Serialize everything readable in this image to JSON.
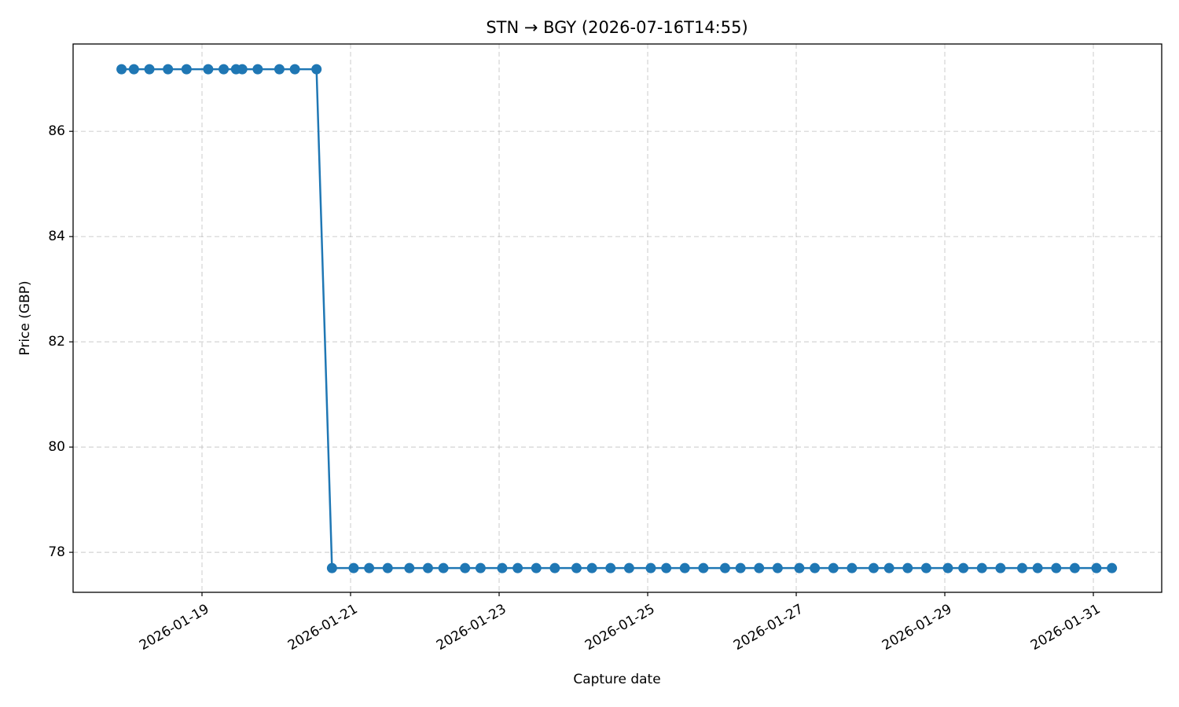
{
  "chart_data": {
    "type": "line",
    "title": "STN → BGY (2026-07-16T14:55)",
    "x_label": "Capture date",
    "y_label": "Price (GBP)",
    "x": [
      "2026-01-17T22:00",
      "2026-01-18T02:00",
      "2026-01-18T07:00",
      "2026-01-18T13:00",
      "2026-01-18T19:00",
      "2026-01-19T02:00",
      "2026-01-19T07:00",
      "2026-01-19T11:00",
      "2026-01-19T13:00",
      "2026-01-19T18:00",
      "2026-01-20T01:00",
      "2026-01-20T06:00",
      "2026-01-20T13:00",
      "2026-01-20T18:00",
      "2026-01-21T01:00",
      "2026-01-21T06:00",
      "2026-01-21T12:00",
      "2026-01-21T19:00",
      "2026-01-22T01:00",
      "2026-01-22T06:00",
      "2026-01-22T13:00",
      "2026-01-22T18:00",
      "2026-01-23T01:00",
      "2026-01-23T06:00",
      "2026-01-23T12:00",
      "2026-01-23T18:00",
      "2026-01-24T01:00",
      "2026-01-24T06:00",
      "2026-01-24T12:00",
      "2026-01-24T18:00",
      "2026-01-25T01:00",
      "2026-01-25T06:00",
      "2026-01-25T12:00",
      "2026-01-25T18:00",
      "2026-01-26T01:00",
      "2026-01-26T06:00",
      "2026-01-26T12:00",
      "2026-01-26T18:00",
      "2026-01-27T01:00",
      "2026-01-27T06:00",
      "2026-01-27T12:00",
      "2026-01-27T18:00",
      "2026-01-28T01:00",
      "2026-01-28T06:00",
      "2026-01-28T12:00",
      "2026-01-28T18:00",
      "2026-01-29T01:00",
      "2026-01-29T06:00",
      "2026-01-29T12:00",
      "2026-01-29T18:00",
      "2026-01-30T01:00",
      "2026-01-30T06:00",
      "2026-01-30T12:00",
      "2026-01-30T18:00",
      "2026-01-31T01:00",
      "2026-01-31T06:00"
    ],
    "series": [
      {
        "color": "#1f77b4",
        "values": [
          87.18,
          87.18,
          87.18,
          87.18,
          87.18,
          87.18,
          87.18,
          87.18,
          87.18,
          87.18,
          87.18,
          87.18,
          87.18,
          77.7,
          77.7,
          77.7,
          77.7,
          77.7,
          77.7,
          77.7,
          77.7,
          77.7,
          77.7,
          77.7,
          77.7,
          77.7,
          77.7,
          77.7,
          77.7,
          77.7,
          77.7,
          77.7,
          77.7,
          77.7,
          77.7,
          77.7,
          77.7,
          77.7,
          77.7,
          77.7,
          77.7,
          77.7,
          77.7,
          77.7,
          77.7,
          77.7,
          77.7,
          77.7,
          77.7,
          77.7,
          77.7,
          77.7,
          77.7,
          77.7,
          77.7,
          77.7
        ]
      }
    ],
    "xlim": [
      "2026-01-17T06:21",
      "2026-01-31T22:05"
    ],
    "xticks": [
      "2026-01-19",
      "2026-01-21",
      "2026-01-23",
      "2026-01-25",
      "2026-01-27",
      "2026-01-29",
      "2026-01-31"
    ],
    "ylim": [
      77.24,
      87.66
    ],
    "yticks": [
      78,
      80,
      82,
      84,
      86
    ],
    "grid": true
  }
}
